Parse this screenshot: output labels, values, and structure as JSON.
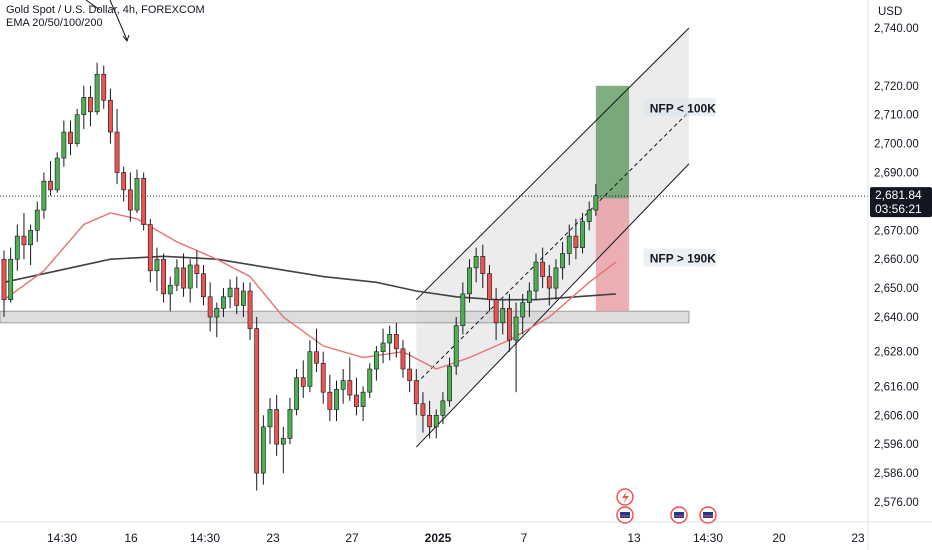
{
  "header": {
    "symbol_line": "Gold Spot / U.S. Dollar, 4h, FOREXCOM",
    "indicator_line": "EMA 20/50/100/200"
  },
  "colors": {
    "up": "#26a69a",
    "up_fill": "#4caf50",
    "down": "#ef5350",
    "ema_fast": "#e57373",
    "ema_slow": "#424242",
    "channel": "#131722",
    "profit_zone": "#4c8c4a",
    "loss_zone": "#e8a0a6",
    "support_band": "#d4d4d4",
    "price_label_bg": "#131722"
  },
  "chart_data": {
    "type": "candlestick",
    "y_axis": {
      "unit": "USD",
      "range": [
        2570,
        2745
      ],
      "ticks": [
        "2,740.00",
        "2,720.00",
        "2,710.00",
        "2,700.00",
        "2,690.00",
        "2,670.00",
        "2,660.00",
        "2,650.00",
        "2,640.00",
        "2,628.00",
        "2,616.00",
        "2,606.00",
        "2,596.00",
        "2,586.00",
        "2,576.00"
      ],
      "tick_values": [
        2740,
        2720,
        2710,
        2700,
        2690,
        2670,
        2660,
        2650,
        2640,
        2628,
        2616,
        2606,
        2596,
        2586,
        2576
      ]
    },
    "x_axis": {
      "ticks": [
        "14:30",
        "16",
        "14:30",
        "23",
        "27",
        "2025",
        "7",
        "13",
        "14:30",
        "20",
        "23"
      ],
      "bold_tick": "2025"
    },
    "current_price": {
      "value": 2681.84,
      "label": "2,681.84",
      "countdown": "03:56:21"
    },
    "candles": [
      [
        2660,
        2663,
        2640,
        2646
      ],
      [
        2646,
        2664,
        2645,
        2660
      ],
      [
        2660,
        2672,
        2656,
        2668
      ],
      [
        2668,
        2676,
        2660,
        2665
      ],
      [
        2665,
        2672,
        2658,
        2670
      ],
      [
        2670,
        2680,
        2666,
        2677
      ],
      [
        2677,
        2690,
        2674,
        2687
      ],
      [
        2687,
        2694,
        2682,
        2684
      ],
      [
        2684,
        2697,
        2683,
        2695
      ],
      [
        2695,
        2708,
        2692,
        2704
      ],
      [
        2704,
        2708,
        2696,
        2700
      ],
      [
        2700,
        2712,
        2699,
        2710
      ],
      [
        2710,
        2720,
        2705,
        2716
      ],
      [
        2716,
        2720,
        2706,
        2711
      ],
      [
        2711,
        2728,
        2710,
        2724
      ],
      [
        2724,
        2727,
        2712,
        2715
      ],
      [
        2715,
        2719,
        2700,
        2704
      ],
      [
        2704,
        2712,
        2686,
        2690
      ],
      [
        2690,
        2692,
        2680,
        2684
      ],
      [
        2684,
        2690,
        2673,
        2677
      ],
      [
        2677,
        2691,
        2676,
        2688
      ],
      [
        2688,
        2690,
        2670,
        2672
      ],
      [
        2672,
        2674,
        2652,
        2656
      ],
      [
        2656,
        2664,
        2649,
        2660
      ],
      [
        2660,
        2662,
        2645,
        2648
      ],
      [
        2648,
        2654,
        2642,
        2651
      ],
      [
        2651,
        2660,
        2649,
        2657
      ],
      [
        2657,
        2662,
        2647,
        2650
      ],
      [
        2650,
        2660,
        2645,
        2658
      ],
      [
        2658,
        2663,
        2650,
        2655
      ],
      [
        2655,
        2658,
        2644,
        2647
      ],
      [
        2647,
        2652,
        2635,
        2640
      ],
      [
        2640,
        2645,
        2633,
        2643
      ],
      [
        2643,
        2650,
        2640,
        2647
      ],
      [
        2647,
        2653,
        2643,
        2650
      ],
      [
        2650,
        2654,
        2641,
        2644
      ],
      [
        2644,
        2652,
        2640,
        2649
      ],
      [
        2649,
        2652,
        2632,
        2636
      ],
      [
        2636,
        2640,
        2580,
        2586
      ],
      [
        2586,
        2606,
        2582,
        2602
      ],
      [
        2602,
        2612,
        2596,
        2608
      ],
      [
        2608,
        2613,
        2592,
        2596
      ],
      [
        2596,
        2602,
        2586,
        2598
      ],
      [
        2598,
        2612,
        2596,
        2608
      ],
      [
        2608,
        2622,
        2606,
        2619
      ],
      [
        2619,
        2625,
        2612,
        2616
      ],
      [
        2616,
        2632,
        2614,
        2628
      ],
      [
        2628,
        2636,
        2621,
        2624
      ],
      [
        2624,
        2628,
        2610,
        2614
      ],
      [
        2614,
        2620,
        2604,
        2608
      ],
      [
        2608,
        2618,
        2604,
        2615
      ],
      [
        2615,
        2622,
        2610,
        2618
      ],
      [
        2618,
        2626,
        2611,
        2613
      ],
      [
        2613,
        2619,
        2606,
        2609
      ],
      [
        2609,
        2616,
        2604,
        2614
      ],
      [
        2614,
        2624,
        2612,
        2622
      ],
      [
        2622,
        2630,
        2618,
        2628
      ],
      [
        2628,
        2636,
        2624,
        2631
      ],
      [
        2631,
        2637,
        2625,
        2634
      ],
      [
        2634,
        2638,
        2626,
        2629
      ],
      [
        2629,
        2632,
        2619,
        2622
      ],
      [
        2622,
        2628,
        2614,
        2618
      ],
      [
        2618,
        2622,
        2606,
        2610
      ],
      [
        2610,
        2614,
        2600,
        2606
      ],
      [
        2606,
        2611,
        2598,
        2602
      ],
      [
        2602,
        2608,
        2598,
        2606
      ],
      [
        2606,
        2614,
        2603,
        2611
      ],
      [
        2611,
        2626,
        2609,
        2623
      ],
      [
        2623,
        2640,
        2620,
        2637
      ],
      [
        2637,
        2652,
        2634,
        2648
      ],
      [
        2648,
        2660,
        2645,
        2657
      ],
      [
        2657,
        2664,
        2652,
        2661
      ],
      [
        2661,
        2665,
        2650,
        2655
      ],
      [
        2655,
        2658,
        2642,
        2646
      ],
      [
        2646,
        2650,
        2632,
        2638
      ],
      [
        2638,
        2646,
        2634,
        2643
      ],
      [
        2643,
        2648,
        2628,
        2632
      ],
      [
        2632,
        2645,
        2614,
        2640
      ],
      [
        2640,
        2648,
        2634,
        2645
      ],
      [
        2645,
        2652,
        2640,
        2649
      ],
      [
        2649,
        2662,
        2646,
        2659
      ],
      [
        2659,
        2664,
        2650,
        2654
      ],
      [
        2654,
        2658,
        2644,
        2650
      ],
      [
        2650,
        2660,
        2646,
        2657
      ],
      [
        2657,
        2666,
        2653,
        2662
      ],
      [
        2662,
        2672,
        2658,
        2668
      ],
      [
        2668,
        2674,
        2660,
        2664
      ],
      [
        2664,
        2676,
        2662,
        2673
      ],
      [
        2673,
        2680,
        2670,
        2677
      ],
      [
        2677,
        2686,
        2675,
        2682
      ]
    ],
    "ema_fast": [
      [
        0,
        2646
      ],
      [
        6,
        2656
      ],
      [
        12,
        2672
      ],
      [
        16,
        2676
      ],
      [
        20,
        2674
      ],
      [
        26,
        2666
      ],
      [
        32,
        2660
      ],
      [
        37,
        2654
      ],
      [
        42,
        2640
      ],
      [
        48,
        2630
      ],
      [
        54,
        2626
      ],
      [
        60,
        2628
      ],
      [
        65,
        2622
      ],
      [
        70,
        2626
      ],
      [
        76,
        2632
      ],
      [
        82,
        2640
      ],
      [
        88,
        2652
      ],
      [
        92,
        2659
      ]
    ],
    "ema_slow": [
      [
        0,
        2652
      ],
      [
        8,
        2656
      ],
      [
        16,
        2660
      ],
      [
        24,
        2661
      ],
      [
        32,
        2660
      ],
      [
        40,
        2657
      ],
      [
        48,
        2654
      ],
      [
        56,
        2652
      ],
      [
        62,
        2649
      ],
      [
        68,
        2647
      ],
      [
        74,
        2646
      ],
      [
        80,
        2646
      ],
      [
        86,
        2647
      ],
      [
        92,
        2648
      ]
    ],
    "channel": {
      "upper": [
        [
          62,
          2646
        ],
        [
          103,
          2740
        ]
      ],
      "middle": [
        [
          62,
          2617
        ],
        [
          103,
          2711
        ]
      ],
      "lower": [
        [
          62,
          2595
        ],
        [
          103,
          2693
        ]
      ],
      "shade_start_x": 62
    },
    "support_zone": {
      "low": 2638,
      "high": 2642,
      "x_start": 0,
      "x_end": 103
    },
    "position": {
      "entry": 2681,
      "target": 2720,
      "stop": 2642,
      "x_start": 89,
      "x_end": 94
    },
    "annotations": [
      "NFP < 100K",
      "NFP > 190K"
    ]
  }
}
